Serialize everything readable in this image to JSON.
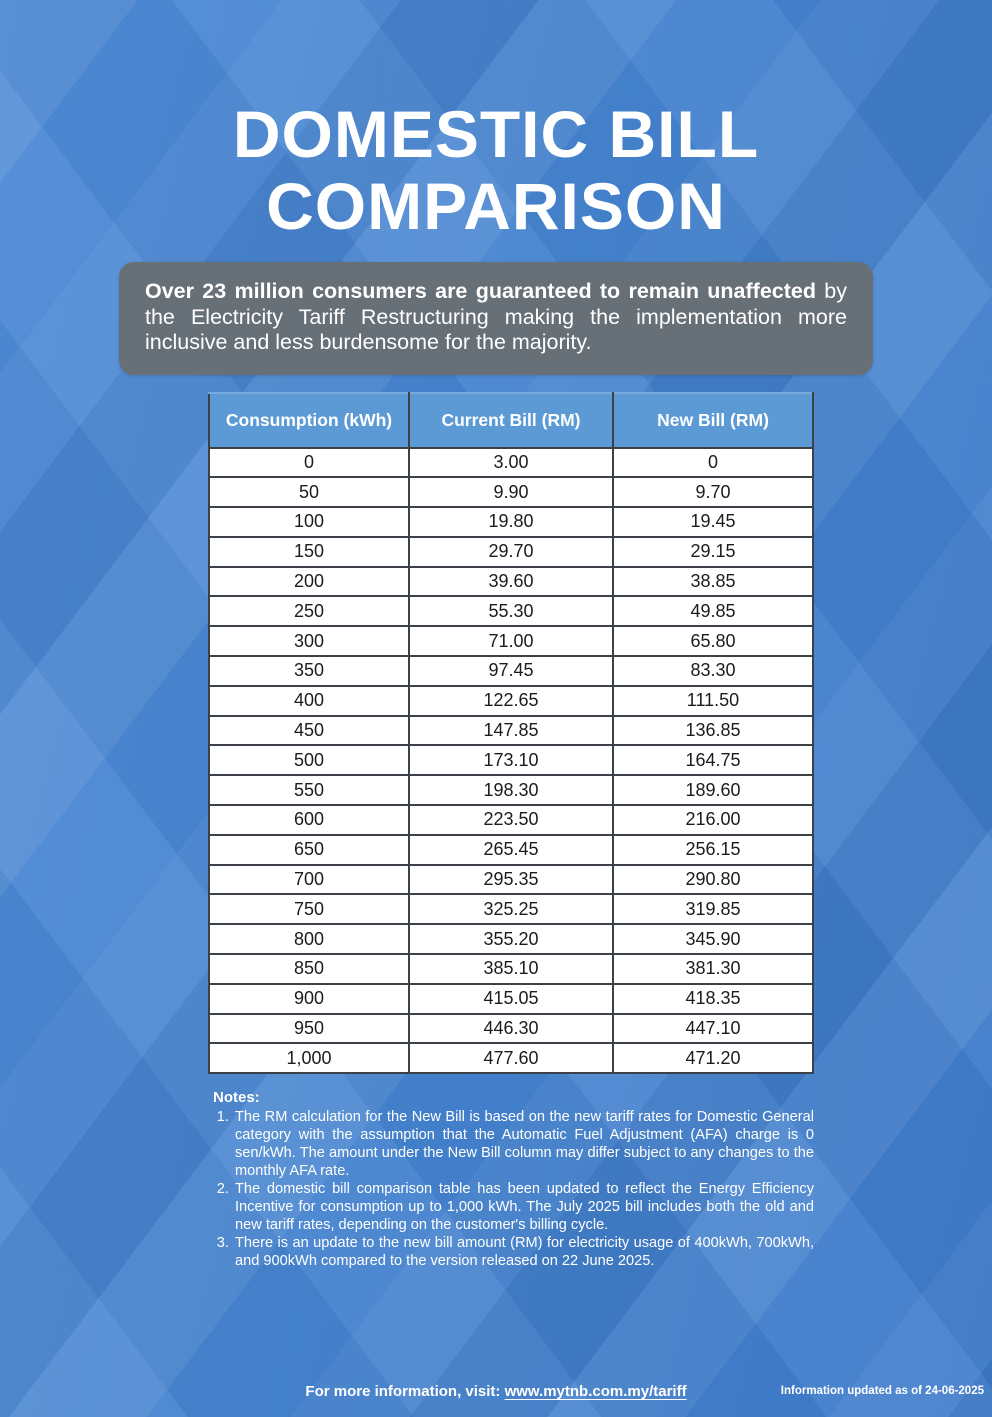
{
  "page": {
    "title_line1": "DOMESTIC BILL",
    "title_line2": "COMPARISON"
  },
  "banner": {
    "bold_text": "Over 23 million consumers are guaranteed to remain unaffected",
    "regular_text": " by the Electricity Tariff Restructuring making the implementation more inclusive and less burdensome for the majority."
  },
  "table": {
    "columns": [
      "Consumption (kWh)",
      "Current Bill (RM)",
      "New Bill (RM)"
    ],
    "rows": [
      [
        "0",
        "3.00",
        "0"
      ],
      [
        "50",
        "9.90",
        "9.70"
      ],
      [
        "100",
        "19.80",
        "19.45"
      ],
      [
        "150",
        "29.70",
        "29.15"
      ],
      [
        "200",
        "39.60",
        "38.85"
      ],
      [
        "250",
        "55.30",
        "49.85"
      ],
      [
        "300",
        "71.00",
        "65.80"
      ],
      [
        "350",
        "97.45",
        "83.30"
      ],
      [
        "400",
        "122.65",
        "111.50"
      ],
      [
        "450",
        "147.85",
        "136.85"
      ],
      [
        "500",
        "173.10",
        "164.75"
      ],
      [
        "550",
        "198.30",
        "189.60"
      ],
      [
        "600",
        "223.50",
        "216.00"
      ],
      [
        "650",
        "265.45",
        "256.15"
      ],
      [
        "700",
        "295.35",
        "290.80"
      ],
      [
        "750",
        "325.25",
        "319.85"
      ],
      [
        "800",
        "355.20",
        "345.90"
      ],
      [
        "850",
        "385.10",
        "381.30"
      ],
      [
        "900",
        "415.05",
        "418.35"
      ],
      [
        "950",
        "446.30",
        "447.10"
      ],
      [
        "1,000",
        "477.60",
        "471.20"
      ]
    ]
  },
  "notes": {
    "heading": "Notes:",
    "items": [
      "The RM calculation for the New Bill is based on the new tariff rates for Domestic General category with the assumption that the Automatic Fuel Adjustment (AFA) charge is 0 sen/kWh. The amount under the New Bill column may differ subject to any changes to the monthly AFA rate.",
      "The domestic bill comparison table has been updated to reflect the Energy Efficiency Incentive for consumption up to 1,000 kWh. The July 2025 bill includes both the old and new tariff rates, depending on the customer's billing cycle.",
      "There is an update to the new bill amount (RM) for electricity usage of 400kWh, 700kWh, and 900kWh compared to the version released on 22 June 2025."
    ]
  },
  "footer": {
    "info_prefix": "For more information, visit: ",
    "link_text": "www.mytnb.com.my/tariff",
    "updated_text": "Information updated as of 24-06-2025"
  },
  "colors": {
    "background_blue": "#4a86d1",
    "table_header_blue": "#5b9ad5",
    "banner_gray": "#676f77",
    "table_border": "#3b4147",
    "cell_text": "#1c1c1c"
  }
}
